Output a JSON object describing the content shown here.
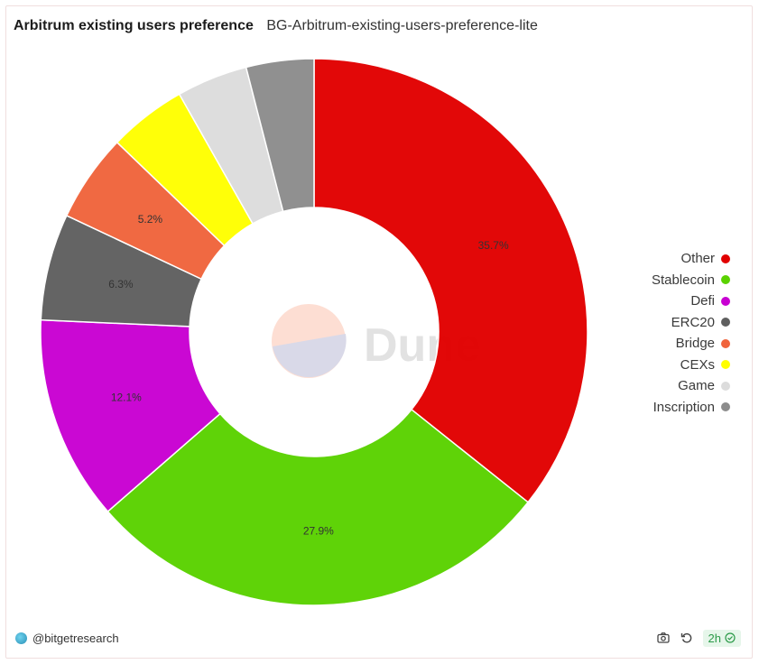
{
  "header": {
    "title": "Arbitrum existing users preference",
    "subtitle": "BG-Arbitrum-existing-users-preference-lite"
  },
  "watermark": {
    "text": "Dune"
  },
  "footer": {
    "author": "@bitgetresearch",
    "refresh_badge": "2h",
    "camera_icon": "camera-icon",
    "refresh_icon": "refresh-icon",
    "check_icon": "check-circle-icon"
  },
  "chart_data": {
    "type": "pie",
    "donut": true,
    "title": "",
    "legend_position": "right",
    "labels": [
      "Other",
      "Stablecoin",
      "Defi",
      "ERC20",
      "Bridge",
      "CEXs",
      "Game",
      "Inscription"
    ],
    "values": [
      35.7,
      27.9,
      12.1,
      6.3,
      5.2,
      4.6,
      4.2,
      4.0
    ],
    "value_labels": [
      "35.7%",
      "27.9%",
      "12.1%",
      "6.3%",
      "5.2%",
      "",
      "",
      ""
    ],
    "colors": [
      "#e10000",
      "#5ad200",
      "#c800d2",
      "#5f5f5f",
      "#f0643c",
      "#ffff00",
      "#dcdcdc",
      "#8c8c8c"
    ]
  }
}
